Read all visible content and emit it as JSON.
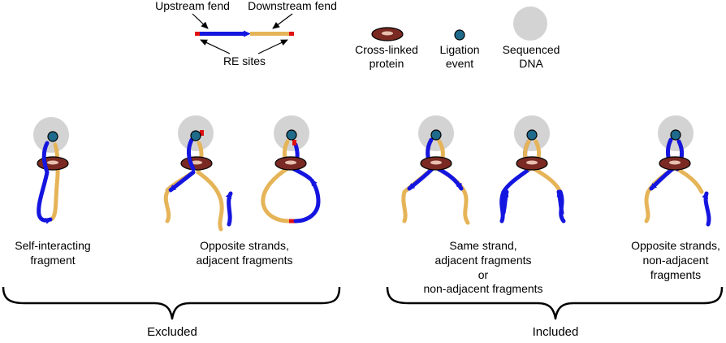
{
  "colors": {
    "upstream": "#1515e0",
    "downstream": "#e6b458",
    "re_site": "#e01010",
    "protein_fill": "#7a2a22",
    "ligation": "#1f6b8c",
    "sequenced_dna": "#d3d3d3"
  },
  "legend": {
    "upstream_label": "Upstream fend",
    "downstream_label": "Downstream fend",
    "re_sites_label": "RE sites",
    "protein_label_1": "Cross-linked",
    "protein_label_2": "protein",
    "ligation_label_1": "Ligation",
    "ligation_label_2": "event",
    "sequenced_label_1": "Sequenced",
    "sequenced_label_2": "DNA"
  },
  "categories": {
    "self_1": "Self-interacting",
    "self_2": "fragment",
    "opp_adj_1": "Opposite strands,",
    "opp_adj_2": "adjacent fragments",
    "same_1": "Same strand,",
    "same_2": "adjacent fragments",
    "same_3": "or",
    "same_4": "non-adjacent fragments",
    "opp_nonadj_1": "Opposite strands,",
    "opp_nonadj_2": "non-adjacent",
    "opp_nonadj_3": "fragments"
  },
  "groups": {
    "excluded": "Excluded",
    "included": "Included"
  }
}
